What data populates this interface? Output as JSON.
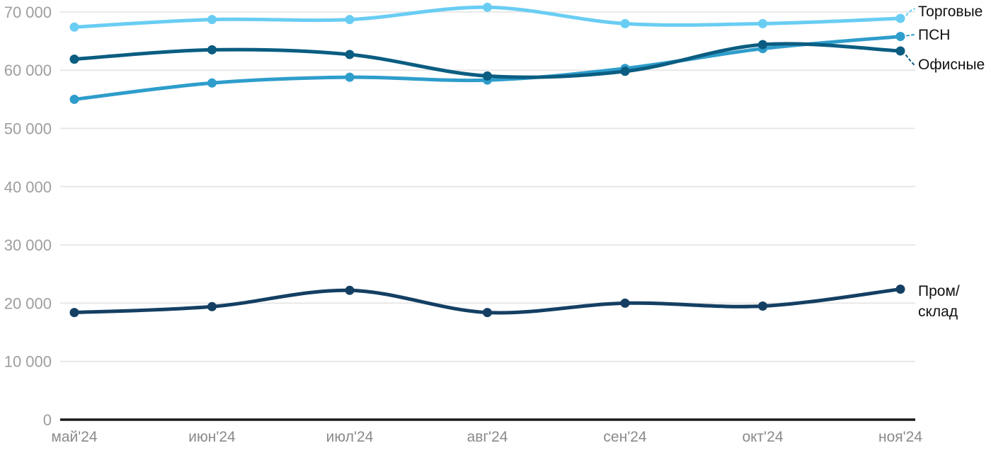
{
  "chart_data": {
    "type": "line",
    "categories": [
      "май'24",
      "июн'24",
      "июл'24",
      "авг'24",
      "сен'24",
      "окт'24",
      "ноя'24"
    ],
    "series": [
      {
        "name": "Торговые",
        "color": "#69CDF3",
        "values": [
          67400,
          68700,
          68700,
          70800,
          68000,
          68000,
          68900
        ],
        "label_lines": [
          "Торговые"
        ]
      },
      {
        "name": "ПСН",
        "color": "#2E9DCB",
        "values": [
          55000,
          57800,
          58800,
          58300,
          60300,
          63700,
          65800
        ],
        "label_lines": [
          "ПСН"
        ]
      },
      {
        "name": "Офисные",
        "color": "#0B5D81",
        "values": [
          61900,
          63500,
          62700,
          59000,
          59800,
          64400,
          63300
        ],
        "label_lines": [
          "Офисные"
        ]
      },
      {
        "name": "Пром/склад",
        "color": "#143F63",
        "values": [
          18400,
          19400,
          22200,
          18400,
          20000,
          19500,
          22400
        ],
        "label_lines": [
          "Пром/",
          "склад"
        ]
      }
    ],
    "y_ticks": [
      0,
      10000,
      20000,
      30000,
      40000,
      50000,
      60000,
      70000
    ],
    "y_tick_labels": [
      "0",
      "10 000",
      "20 000",
      "30 000",
      "40 000",
      "50 000",
      "60 000",
      "70 000"
    ],
    "ylim": [
      0,
      72000
    ],
    "grid": true,
    "legend_position": "end-of-line-labels"
  },
  "colors": {
    "background": "#FFFFFF",
    "grid": "#E8E8E8",
    "axis": "#1A1A1A",
    "y_tick_text": "#9E9E9E",
    "x_tick_text": "#8A8A8A",
    "label_text": "#111111"
  }
}
